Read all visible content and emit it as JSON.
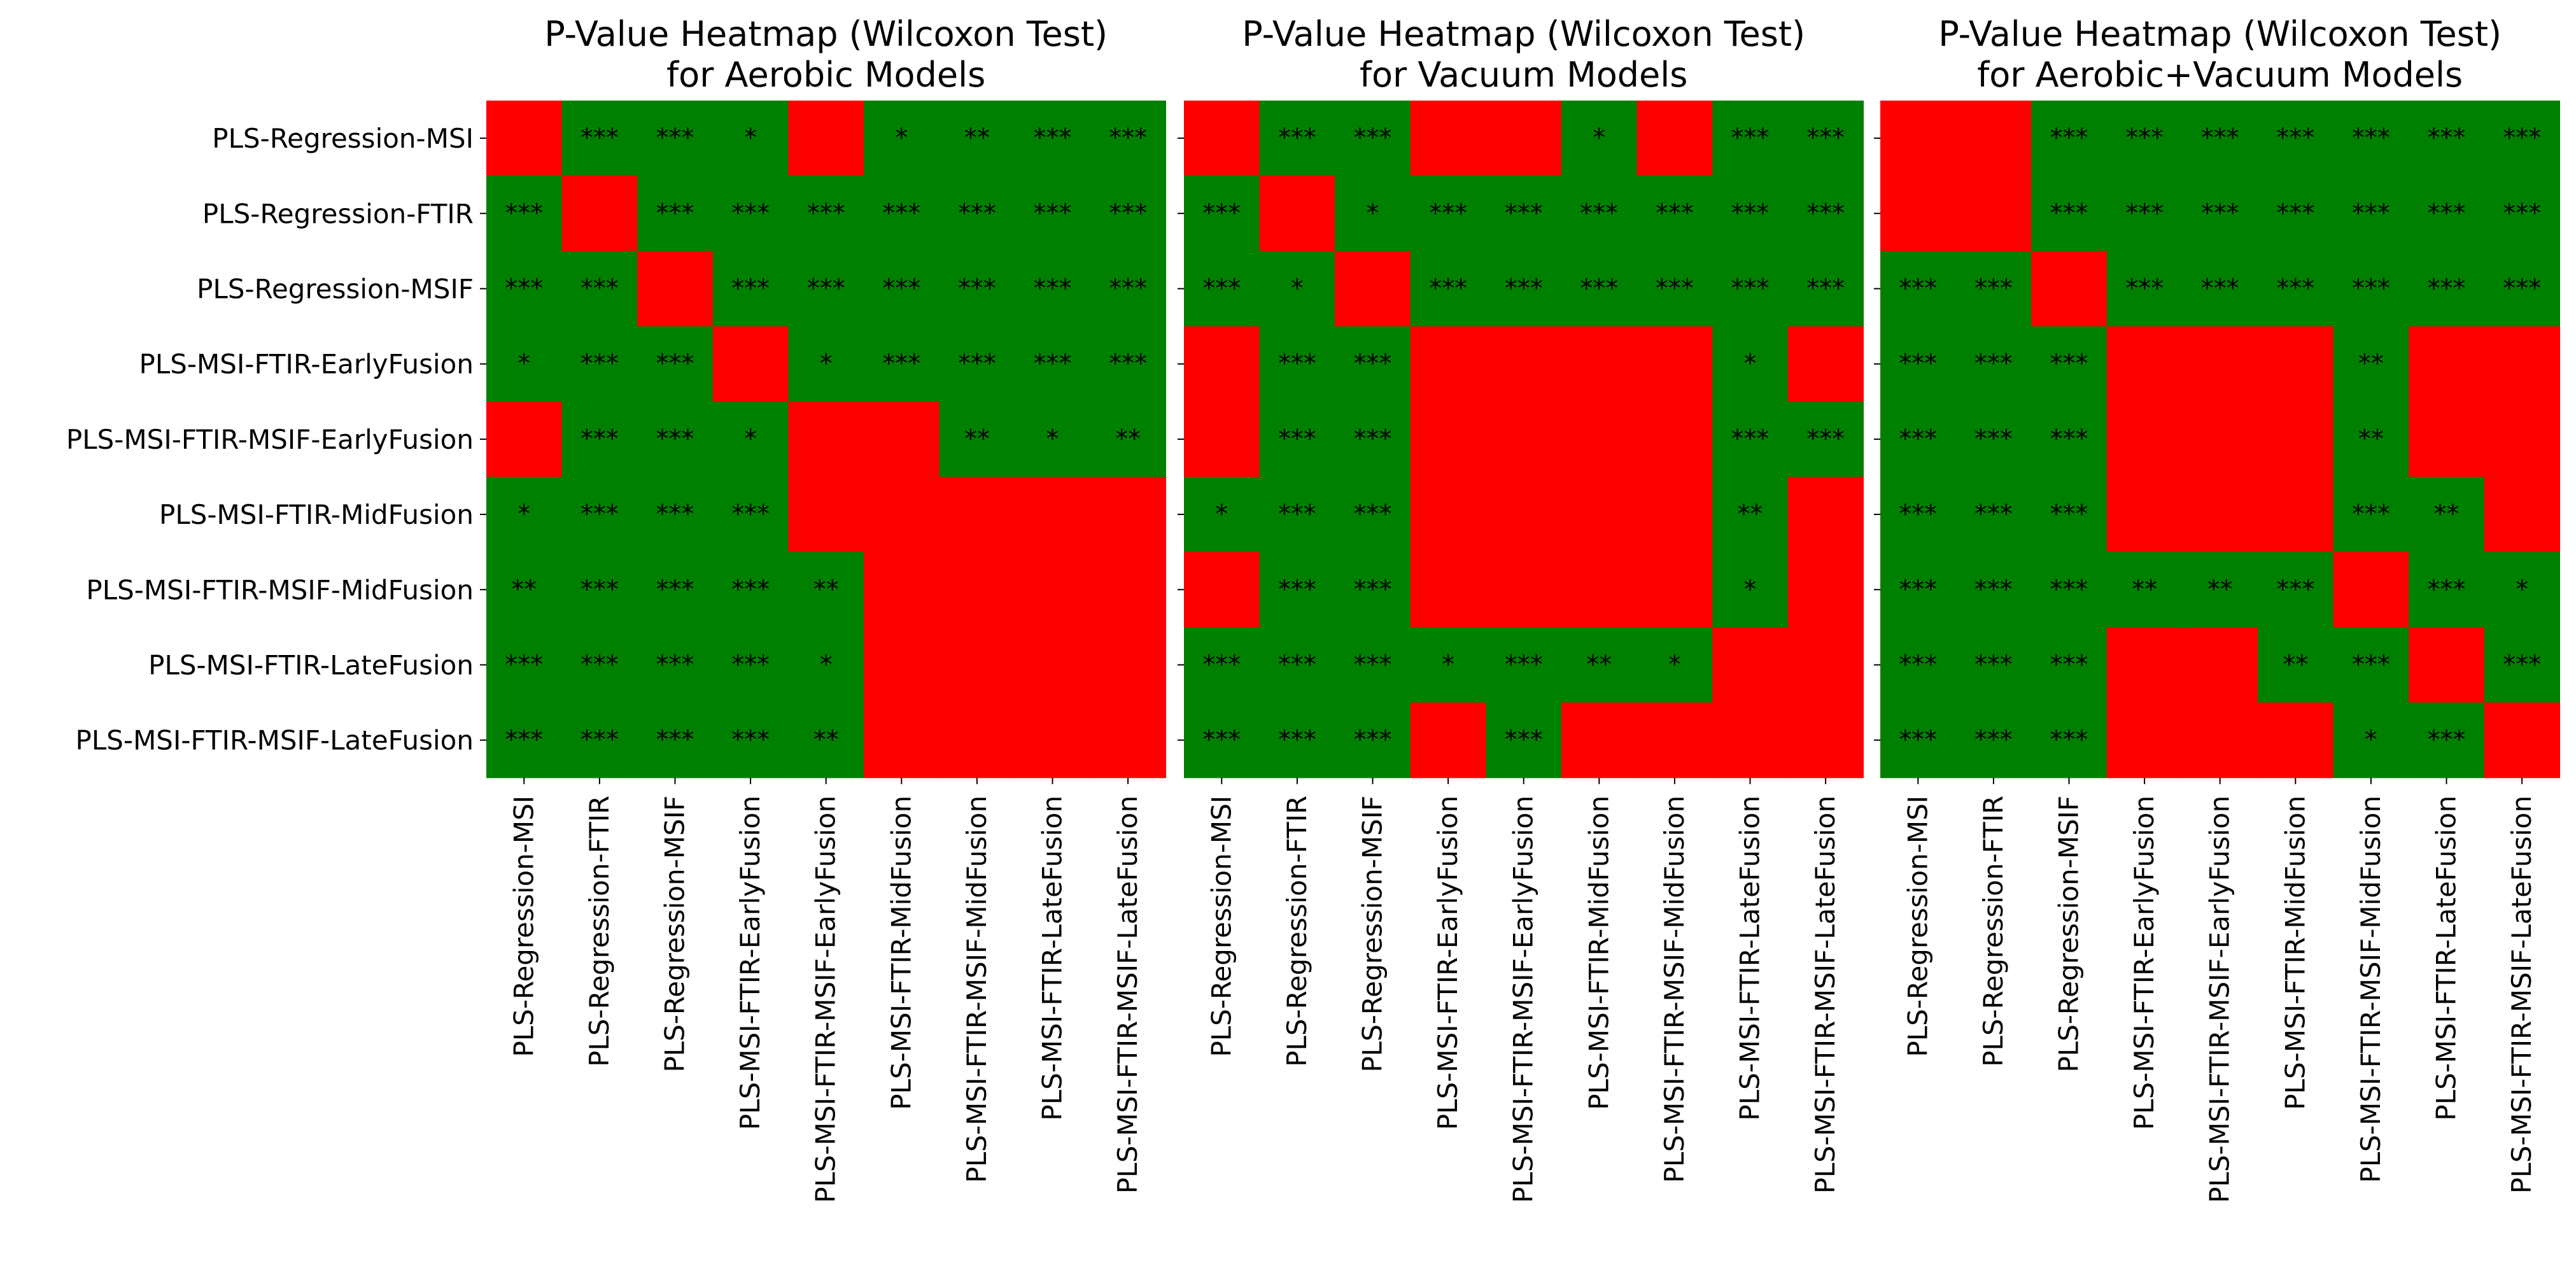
{
  "chart_data": {
    "type": "heatmap",
    "colors": {
      "significant": "#008000",
      "not_significant": "#ff0000",
      "diagonal": "#ff0000"
    },
    "labels": [
      "PLS-Regression-MSI",
      "PLS-Regression-FTIR",
      "PLS-Regression-MSIF",
      "PLS-MSI-FTIR-EarlyFusion",
      "PLS-MSI-FTIR-MSIF-EarlyFusion",
      "PLS-MSI-FTIR-MidFusion",
      "PLS-MSI-FTIR-MSIF-MidFusion",
      "PLS-MSI-FTIR-LateFusion",
      "PLS-MSI-FTIR-MSIF-LateFusion"
    ],
    "panels": [
      {
        "title_lines": [
          "P-Value Heatmap (Wilcoxon Test)",
          "for Aerobic Models"
        ],
        "cells": [
          [
            "",
            "***",
            "***",
            "*",
            "",
            "*",
            "**",
            "***",
            "***"
          ],
          [
            "***",
            "",
            "***",
            "***",
            "***",
            "***",
            "***",
            "***",
            "***"
          ],
          [
            "***",
            "***",
            "",
            "***",
            "***",
            "***",
            "***",
            "***",
            "***"
          ],
          [
            "*",
            "***",
            "***",
            "",
            "*",
            "***",
            "***",
            "***",
            "***"
          ],
          [
            "",
            "***",
            "***",
            "*",
            "",
            "",
            "**",
            "*",
            "**"
          ],
          [
            "*",
            "***",
            "***",
            "***",
            "",
            "",
            "",
            "",
            ""
          ],
          [
            "**",
            "***",
            "***",
            "***",
            "**",
            "",
            "",
            "",
            ""
          ],
          [
            "***",
            "***",
            "***",
            "***",
            "*",
            "",
            "",
            "",
            ""
          ],
          [
            "***",
            "***",
            "***",
            "***",
            "**",
            "",
            "",
            "",
            ""
          ]
        ]
      },
      {
        "title_lines": [
          "P-Value Heatmap (Wilcoxon Test)",
          "for Vacuum Models"
        ],
        "cells": [
          [
            "",
            "***",
            "***",
            "",
            "",
            "*",
            "",
            "***",
            "***"
          ],
          [
            "***",
            "",
            "*",
            "***",
            "***",
            "***",
            "***",
            "***",
            "***"
          ],
          [
            "***",
            "*",
            "",
            "***",
            "***",
            "***",
            "***",
            "***",
            "***"
          ],
          [
            "",
            "***",
            "***",
            "",
            "",
            "",
            "",
            "*",
            ""
          ],
          [
            "",
            "***",
            "***",
            "",
            "",
            "",
            "",
            "***",
            "***"
          ],
          [
            "*",
            "***",
            "***",
            "",
            "",
            "",
            "",
            "**",
            ""
          ],
          [
            "",
            "***",
            "***",
            "",
            "",
            "",
            "",
            "*",
            ""
          ],
          [
            "***",
            "***",
            "***",
            "*",
            "***",
            "**",
            "*",
            "",
            ""
          ],
          [
            "***",
            "***",
            "***",
            "",
            "***",
            "",
            "",
            "",
            ""
          ]
        ]
      },
      {
        "title_lines": [
          "P-Value Heatmap (Wilcoxon Test)",
          "for Aerobic+Vacuum Models"
        ],
        "cells": [
          [
            "",
            "",
            "***",
            "***",
            "***",
            "***",
            "***",
            "***",
            "***"
          ],
          [
            "",
            "",
            "***",
            "***",
            "***",
            "***",
            "***",
            "***",
            "***"
          ],
          [
            "***",
            "***",
            "",
            "***",
            "***",
            "***",
            "***",
            "***",
            "***"
          ],
          [
            "***",
            "***",
            "***",
            "",
            "",
            "",
            "**",
            "",
            ""
          ],
          [
            "***",
            "***",
            "***",
            "",
            "",
            "",
            "**",
            "",
            ""
          ],
          [
            "***",
            "***",
            "***",
            "",
            "",
            "",
            "***",
            "**",
            ""
          ],
          [
            "***",
            "***",
            "***",
            "**",
            "**",
            "***",
            "",
            "***",
            "*"
          ],
          [
            "***",
            "***",
            "***",
            "",
            "",
            "**",
            "***",
            "",
            "***"
          ],
          [
            "***",
            "***",
            "***",
            "",
            "",
            "",
            "*",
            "***",
            ""
          ]
        ]
      }
    ]
  }
}
